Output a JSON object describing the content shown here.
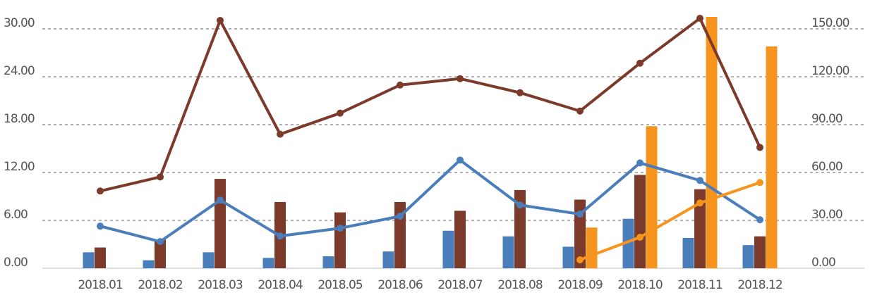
{
  "chart_data": {
    "type": "bar-line",
    "categories": [
      "2018.01",
      "2018.02",
      "2018.03",
      "2018.04",
      "2018.05",
      "2018.06",
      "2018.07",
      "2018.08",
      "2018.09",
      "2018.10",
      "2018.11",
      "2018.12"
    ],
    "series": [
      {
        "type": "bar",
        "color": "#4a7ebb",
        "values": [
          2.0,
          1.0,
          2.0,
          1.3,
          1.5,
          2.1,
          4.7,
          4.0,
          2.7,
          6.2,
          3.8,
          2.9
        ]
      },
      {
        "type": "bar",
        "color": "#7b3a2a",
        "values": [
          2.6,
          3.6,
          11.2,
          8.3,
          7.0,
          8.3,
          7.2,
          9.8,
          8.6,
          11.7,
          9.9,
          4.0
        ]
      },
      {
        "type": "bar",
        "color": "#f7941d",
        "values": [
          null,
          null,
          null,
          null,
          null,
          null,
          null,
          null,
          5.1,
          17.8,
          31.5,
          27.8
        ]
      },
      {
        "type": "line",
        "axis": "y2",
        "color": "#7b3a2a",
        "values": [
          48.4,
          57.2,
          155.3,
          84.0,
          97.2,
          114.8,
          118.8,
          110.0,
          98.5,
          128.5,
          156.6,
          75.7
        ]
      },
      {
        "type": "line",
        "axis": "y2",
        "color": "#4a7ebb",
        "values": [
          26.4,
          16.7,
          42.7,
          20.2,
          25.1,
          32.6,
          67.8,
          39.6,
          33.9,
          66.0,
          55.0,
          30.4
        ]
      },
      {
        "type": "line",
        "axis": "y2",
        "color": "#f7941d",
        "values": [
          null,
          null,
          null,
          null,
          null,
          null,
          null,
          null,
          5.3,
          19.4,
          40.9,
          53.7
        ]
      }
    ],
    "ylim": [
      0,
      30
    ],
    "yticks": [
      {
        "value": 0,
        "label": "0.00"
      },
      {
        "value": 6,
        "label": "6.00"
      },
      {
        "value": 12,
        "label": "12.00"
      },
      {
        "value": 18,
        "label": "18.00"
      },
      {
        "value": 24,
        "label": "24.00"
      },
      {
        "value": 30,
        "label": "30.00"
      }
    ],
    "y2lim": [
      0,
      150
    ],
    "y2ticks": [
      {
        "value": 0,
        "label": "0.00"
      },
      {
        "value": 30,
        "label": "30.00"
      },
      {
        "value": 60,
        "label": "60.00"
      },
      {
        "value": 90,
        "label": "90.00"
      },
      {
        "value": 120,
        "label": "120.00"
      },
      {
        "value": 150,
        "label": "150.00"
      }
    ],
    "grid": true
  }
}
